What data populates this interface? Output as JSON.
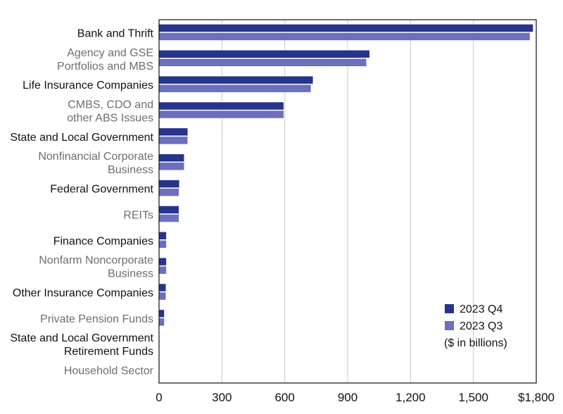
{
  "chart_data": {
    "type": "bar",
    "orientation": "horizontal",
    "categories": [
      {
        "lines": [
          "Bank and Thrift"
        ],
        "emphasis": "dark"
      },
      {
        "lines": [
          "Agency and GSE",
          "Portfolios and MBS"
        ],
        "emphasis": "muted"
      },
      {
        "lines": [
          "Life Insurance Companies"
        ],
        "emphasis": "dark"
      },
      {
        "lines": [
          "CMBS, CDO and",
          "other ABS Issues"
        ],
        "emphasis": "muted"
      },
      {
        "lines": [
          "State and Local Government"
        ],
        "emphasis": "dark"
      },
      {
        "lines": [
          "Nonfinancial Corporate",
          "Business"
        ],
        "emphasis": "muted"
      },
      {
        "lines": [
          "Federal Government"
        ],
        "emphasis": "dark"
      },
      {
        "lines": [
          "REITs"
        ],
        "emphasis": "muted"
      },
      {
        "lines": [
          "Finance Companies"
        ],
        "emphasis": "dark"
      },
      {
        "lines": [
          "Nonfarm Noncorporate",
          "Business"
        ],
        "emphasis": "muted"
      },
      {
        "lines": [
          "Other Insurance Companies"
        ],
        "emphasis": "dark"
      },
      {
        "lines": [
          "Private Pension Funds"
        ],
        "emphasis": "muted"
      },
      {
        "lines": [
          "State and Local Government",
          "Retirement Funds"
        ],
        "emphasis": "dark"
      },
      {
        "lines": [
          "Household Sector"
        ],
        "emphasis": "muted"
      }
    ],
    "series": [
      {
        "name": "2023 Q4",
        "color": "#27348b",
        "values": [
          1785,
          1005,
          735,
          595,
          137,
          120,
          97,
          95,
          35,
          35,
          33,
          25,
          2,
          0.5
        ]
      },
      {
        "name": "2023 Q3",
        "color": "#6b6fbd",
        "values": [
          1770,
          990,
          725,
          595,
          137,
          120,
          95,
          95,
          35,
          35,
          33,
          25,
          2,
          0.5
        ]
      }
    ],
    "xlim": [
      0,
      1800
    ],
    "xticks": [
      {
        "value": 0,
        "label": "0"
      },
      {
        "value": 300,
        "label": "300"
      },
      {
        "value": 600,
        "label": "600"
      },
      {
        "value": 900,
        "label": "900"
      },
      {
        "value": 1200,
        "label": "1,200"
      },
      {
        "value": 1500,
        "label": "1,500"
      },
      {
        "value": 1800,
        "label": "$1,800"
      }
    ],
    "legend_note": "($ in billions)",
    "legend_position": "bottom-right",
    "grid": true,
    "colors": {
      "label_dark": "#111111",
      "label_muted": "#6e6e6e",
      "gridline": "#c8c8c8",
      "frame": "#111111"
    }
  }
}
